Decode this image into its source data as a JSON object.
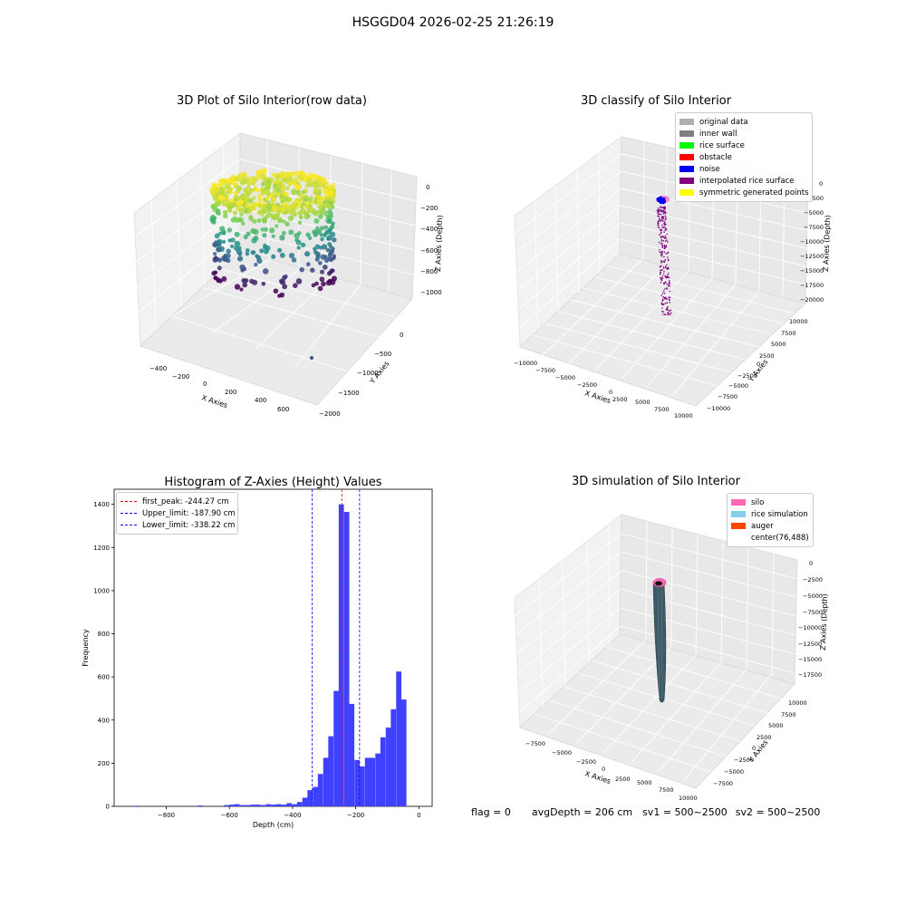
{
  "suptitle": "HSGGD04 2026-02-25 21:26:19",
  "panel1": {
    "title": "3D Plot of Silo Interior(row data)",
    "xlabel": "X Axies",
    "ylabel": "Y Axies",
    "zlabel": "Z Axies (Depth)",
    "xticks": [
      "−400",
      "−200",
      "0",
      "200",
      "400",
      "600"
    ],
    "yticks": [
      "0",
      "−500",
      "−1000",
      "−1500",
      "−2000"
    ],
    "zticks": [
      "0",
      "−200",
      "−400",
      "−600",
      "−800",
      "−1000"
    ]
  },
  "panel2": {
    "title": "3D classify of Silo Interior",
    "xlabel": "X Axies",
    "ylabel": "Y Axies",
    "zlabel": "Z Axies (Depth)",
    "xticks": [
      "−10000",
      "−7500",
      "−5000",
      "−2500",
      "0",
      "2500",
      "5000",
      "7500",
      "10000"
    ],
    "yticks": [
      "10000",
      "7500",
      "5000",
      "2500",
      "0",
      "−2500",
      "−5000",
      "−7500",
      "−10000"
    ],
    "zticks": [
      "0",
      "−2500",
      "−5000",
      "−7500",
      "−10000",
      "−12500",
      "−15000",
      "−17500",
      "−20000"
    ],
    "legend": [
      {
        "label": "original data",
        "color": "#b0b0b0"
      },
      {
        "label": "inner wall",
        "color": "#808080"
      },
      {
        "label": "rice surface",
        "color": "#00ff00"
      },
      {
        "label": "obstacle",
        "color": "#ff0000"
      },
      {
        "label": "noise",
        "color": "#0000ff"
      },
      {
        "label": "interpolated rice surface",
        "color": "#800080"
      },
      {
        "label": "symmetric generated points",
        "color": "#ffff00"
      }
    ]
  },
  "panel4": {
    "title": "3D simulation of Silo Interior",
    "xlabel": "X Axies",
    "ylabel": "Y Axies",
    "zlabel": "Z Axies (Depth)",
    "xticks": [
      "−7500",
      "−5000",
      "−2500",
      "0",
      "2500",
      "5000",
      "7500",
      "10000"
    ],
    "yticks": [
      "10000",
      "7500",
      "5000",
      "2500",
      "0",
      "−2500",
      "−5000",
      "−7500"
    ],
    "zticks": [
      "0",
      "−2500",
      "−5000",
      "−7500",
      "−10000",
      "−12500",
      "−15000",
      "−17500"
    ],
    "legend": [
      {
        "label": "silo",
        "color": "#ff69b4"
      },
      {
        "label": "rice simulation",
        "color": "#87ceeb"
      },
      {
        "label": "auger",
        "color": "#ff4500"
      },
      {
        "label": "center(76,488)",
        "color": "none"
      }
    ]
  },
  "footer": {
    "flag": "flag = 0",
    "avg": "avgDepth = 206 cm",
    "sv1": "sv1 = 500~2500",
    "sv2": "sv2 = 500~2500"
  },
  "chart_data": [
    {
      "type": "scatter",
      "title": "3D Plot of Silo Interior(row data)",
      "xlabel": "X Axies",
      "ylabel": "Y Axies",
      "zlabel": "Z Axies (Depth)",
      "xlim": [
        -500,
        700
      ],
      "ylim": [
        -2000,
        200
      ],
      "zlim": [
        -1100,
        50
      ],
      "description_points": "approx. 5000 points on a cylindrical silo wall, x -200..350, y -300..200, z 0..-700, coloured by depth (viridis), one outlier near x 600, y -1800"
    },
    {
      "type": "scatter",
      "title": "3D classify of Silo Interior",
      "xlabel": "X Axies",
      "ylabel": "Y Axies",
      "zlabel": "Z Axies (Depth)",
      "xlim": [
        -10000,
        10000
      ],
      "ylim": [
        -10000,
        10000
      ],
      "zlim": [
        -21000,
        0
      ],
      "legend": [
        "original data",
        "inner wall",
        "rice surface",
        "obstacle",
        "noise",
        "interpolated rice surface",
        "symmetric generated points"
      ]
    },
    {
      "type": "bar",
      "title": "Histogram of Z-Axies (Height) Values",
      "xlabel": "Depth (cm)",
      "ylabel": "Frequency",
      "xlim": [
        -965,
        42
      ],
      "ylim": [
        0,
        1470
      ],
      "xticks": [
        -800,
        -600,
        -400,
        -200,
        0
      ],
      "yticks": [
        0,
        200,
        400,
        600,
        800,
        1000,
        1200,
        1400
      ],
      "bin_width": 16.5,
      "bins_left": [
        -900,
        -700,
        -617,
        -600,
        -584,
        -567,
        -551,
        -534,
        -518,
        -501,
        -485,
        -468,
        -452,
        -435,
        -419,
        -402,
        -386,
        -369,
        -353,
        -336,
        -320,
        -303,
        -287,
        -270,
        -254,
        -237,
        -221,
        -204,
        -188,
        -171,
        -155,
        -138,
        -122,
        -105,
        -89,
        -72,
        -56,
        -39,
        -23,
        -6
      ],
      "values": [
        3,
        4,
        6,
        8,
        10,
        6,
        6,
        8,
        8,
        6,
        10,
        8,
        10,
        8,
        15,
        10,
        20,
        40,
        75,
        90,
        150,
        225,
        325,
        535,
        1400,
        1365,
        475,
        215,
        185,
        225,
        225,
        245,
        320,
        365,
        450,
        625,
        495,
        0,
        0,
        0
      ],
      "lines": [
        {
          "label": "first_peak: -244.27 cm",
          "x": -244.27,
          "color": "#ff0000"
        },
        {
          "label": "Upper_limit: -187.90 cm",
          "x": -187.9,
          "color": "#0000ff"
        },
        {
          "label": "Lower_limit: -338.22 cm",
          "x": -338.22,
          "color": "#0000ff"
        }
      ],
      "bar_color": "#4040ff"
    },
    {
      "type": "scatter",
      "title": "3D simulation of Silo Interior",
      "xlabel": "X Axies",
      "ylabel": "Y Axies",
      "zlabel": "Z Axies (Depth)",
      "xlim": [
        -10000,
        10000
      ],
      "ylim": [
        -10000,
        10000
      ],
      "zlim": [
        -19000,
        0
      ],
      "legend": [
        "silo",
        "rice simulation",
        "auger",
        "center(76,488)"
      ]
    }
  ]
}
